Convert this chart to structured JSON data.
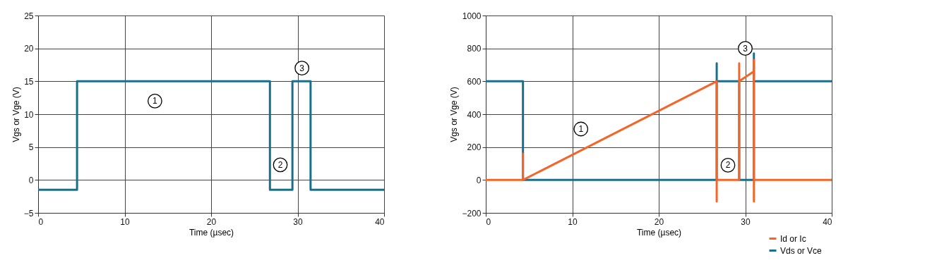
{
  "chart_data": [
    {
      "type": "line",
      "xlabel": "Time (µsec)",
      "ylabel": "Vgs or Vge (V)",
      "xlim": [
        0,
        40
      ],
      "xticks": [
        0,
        10,
        20,
        30,
        40
      ],
      "ylim": [
        -5,
        25
      ],
      "yticks": [
        {
          "value": -5,
          "label": "−5"
        },
        0,
        5,
        10,
        15,
        20,
        25
      ],
      "grid": true,
      "legend": false,
      "line_style": "solid",
      "series": [
        {
          "color": "#1b6f8c",
          "x": [
            0,
            4.5,
            4.5,
            26.8,
            26.8,
            29.4,
            29.4,
            31.5,
            31.5,
            40
          ],
          "values": [
            -1.5,
            -1.5,
            15,
            15,
            -1.5,
            -1.5,
            15,
            15,
            -1.5,
            -1.5
          ]
        }
      ],
      "annotations": [
        {
          "text": "1",
          "x": 13.5,
          "y": 12
        },
        {
          "text": "2",
          "x": 28,
          "y": 2.3
        },
        {
          "text": "3",
          "x": 30.5,
          "y": 17
        }
      ]
    },
    {
      "type": "line",
      "xlabel": "Time (µsec)",
      "ylabel": "Vgs or Vge (V)",
      "xlim": [
        0,
        40
      ],
      "xticks": [
        0,
        10,
        20,
        30,
        40
      ],
      "ylim": [
        -200,
        1000
      ],
      "yticks": [
        {
          "value": -200,
          "label": "−200"
        },
        0,
        200,
        400,
        600,
        800,
        1000
      ],
      "grid": true,
      "legend": "bottom right",
      "line_style": "solid",
      "series": [
        {
          "name": "Id or Ic",
          "color": "#f4652a",
          "x": [
            0,
            4.3,
            4.3,
            4.3,
            26.7,
            26.7,
            26.7,
            29.3,
            29.3,
            29.3,
            31.0,
            31.0,
            31.0,
            31.0,
            40
          ],
          "values": [
            0,
            0,
            160,
            0,
            600,
            -130,
            0,
            0,
            710,
            600,
            660,
            730,
            -130,
            0,
            0
          ]
        },
        {
          "name": "Vds or Vce",
          "color": "#1b6f8c",
          "x": [
            0,
            4.3,
            4.3,
            26.7,
            26.7,
            26.7,
            29.3,
            29.3,
            31.0,
            31.0,
            31.0,
            40
          ],
          "values": [
            600,
            600,
            0,
            0,
            710,
            600,
            600,
            0,
            0,
            770,
            600,
            600
          ]
        }
      ],
      "annotations": [
        {
          "text": "1",
          "x": 11,
          "y": 310
        },
        {
          "text": "2",
          "x": 28,
          "y": 90
        },
        {
          "text": "3",
          "x": 30,
          "y": 800
        }
      ]
    }
  ]
}
